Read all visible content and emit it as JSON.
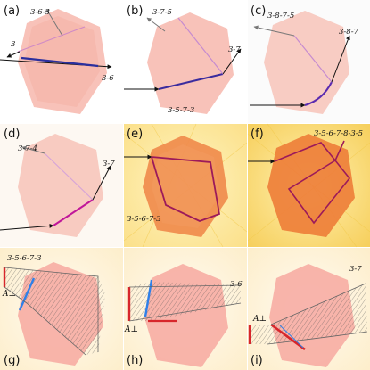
{
  "panels": [
    {
      "letter": "(a)",
      "labels": [
        "3-6-3",
        "3",
        "3-6"
      ]
    },
    {
      "letter": "(b)",
      "labels": [
        "3-7-5",
        "3-7",
        "3-5-7-3"
      ]
    },
    {
      "letter": "(c)",
      "labels": [
        "3-8-7-5",
        "3-8-7"
      ]
    },
    {
      "letter": "(d)",
      "labels": [
        "3-7-4",
        "3-7"
      ]
    },
    {
      "letter": "(e)",
      "labels": [
        "3-5-6-7-3"
      ]
    },
    {
      "letter": "(f)",
      "labels": [
        "3-5-6-7-8-3-5"
      ]
    },
    {
      "letter": "(g)",
      "labels": [
        "3-5-6-7-3"
      ],
      "aperp": "A⊥"
    },
    {
      "letter": "(h)",
      "labels": [
        "3-6"
      ],
      "aperp": "A⊥"
    },
    {
      "letter": "(i)",
      "labels": [
        "3-7"
      ],
      "aperp": "A⊥"
    }
  ]
}
